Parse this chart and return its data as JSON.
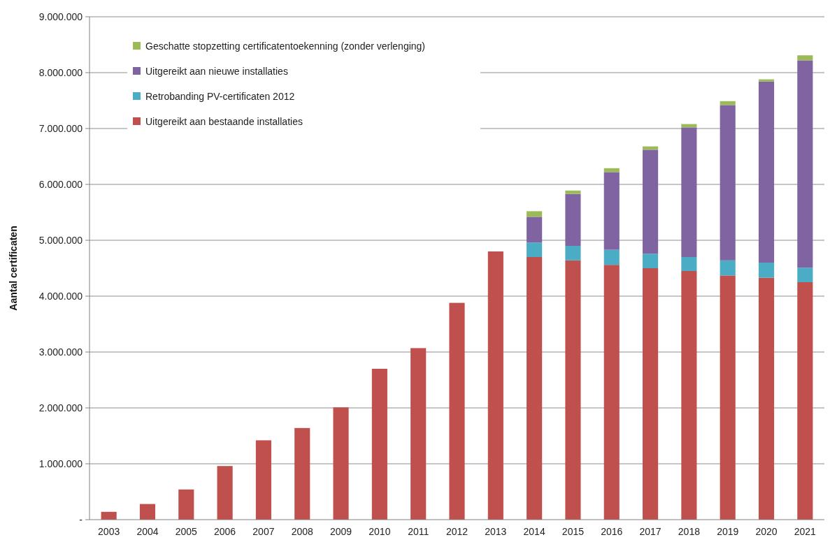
{
  "chart_data": {
    "type": "bar",
    "stacked": true,
    "ylabel": "Aantal certificaten",
    "categories": [
      "2003",
      "2004",
      "2005",
      "2006",
      "2007",
      "2008",
      "2009",
      "2010",
      "2011",
      "2012",
      "2013",
      "2014",
      "2015",
      "2016",
      "2017",
      "2018",
      "2019",
      "2020",
      "2021"
    ],
    "series": [
      {
        "name": "Uitgereikt aan bestaande installaties",
        "color": "#c0504d",
        "values": [
          140000,
          280000,
          540000,
          960000,
          1420000,
          1640000,
          2010000,
          2700000,
          3070000,
          3880000,
          4800000,
          4700000,
          4640000,
          4560000,
          4500000,
          4450000,
          4370000,
          4330000,
          4250000
        ]
      },
      {
        "name": "Retrobanding PV-certificaten 2012",
        "color": "#4bacc6",
        "values": [
          null,
          null,
          null,
          null,
          null,
          null,
          null,
          null,
          null,
          null,
          null,
          260000,
          260000,
          270000,
          260000,
          250000,
          270000,
          270000,
          260000
        ]
      },
      {
        "name": "Uitgereikt aan nieuwe installaties",
        "color": "#8064a2",
        "values": [
          null,
          null,
          null,
          null,
          null,
          null,
          null,
          null,
          null,
          null,
          null,
          460000,
          930000,
          1390000,
          1860000,
          2320000,
          2780000,
          3240000,
          3710000
        ]
      },
      {
        "name": "Geschatte stopzetting certificatentoekenning (zonder verlenging)",
        "color": "#9bbb59",
        "values": [
          null,
          null,
          null,
          null,
          null,
          null,
          null,
          null,
          null,
          null,
          null,
          100000,
          60000,
          70000,
          60000,
          60000,
          70000,
          40000,
          90000
        ]
      }
    ],
    "ylim": [
      0,
      9000000
    ],
    "yticks": [
      {
        "value": 0,
        "label": "-"
      },
      {
        "value": 1000000,
        "label": "1.000.000"
      },
      {
        "value": 2000000,
        "label": "2.000.000"
      },
      {
        "value": 3000000,
        "label": "3.000.000"
      },
      {
        "value": 4000000,
        "label": "4.000.000"
      },
      {
        "value": 5000000,
        "label": "5.000.000"
      },
      {
        "value": 6000000,
        "label": "6.000.000"
      },
      {
        "value": 7000000,
        "label": "7.000.000"
      },
      {
        "value": 8000000,
        "label": "8.000.000"
      },
      {
        "value": 9000000,
        "label": "9.000.000"
      }
    ],
    "grid": "y",
    "legend": "top left"
  }
}
